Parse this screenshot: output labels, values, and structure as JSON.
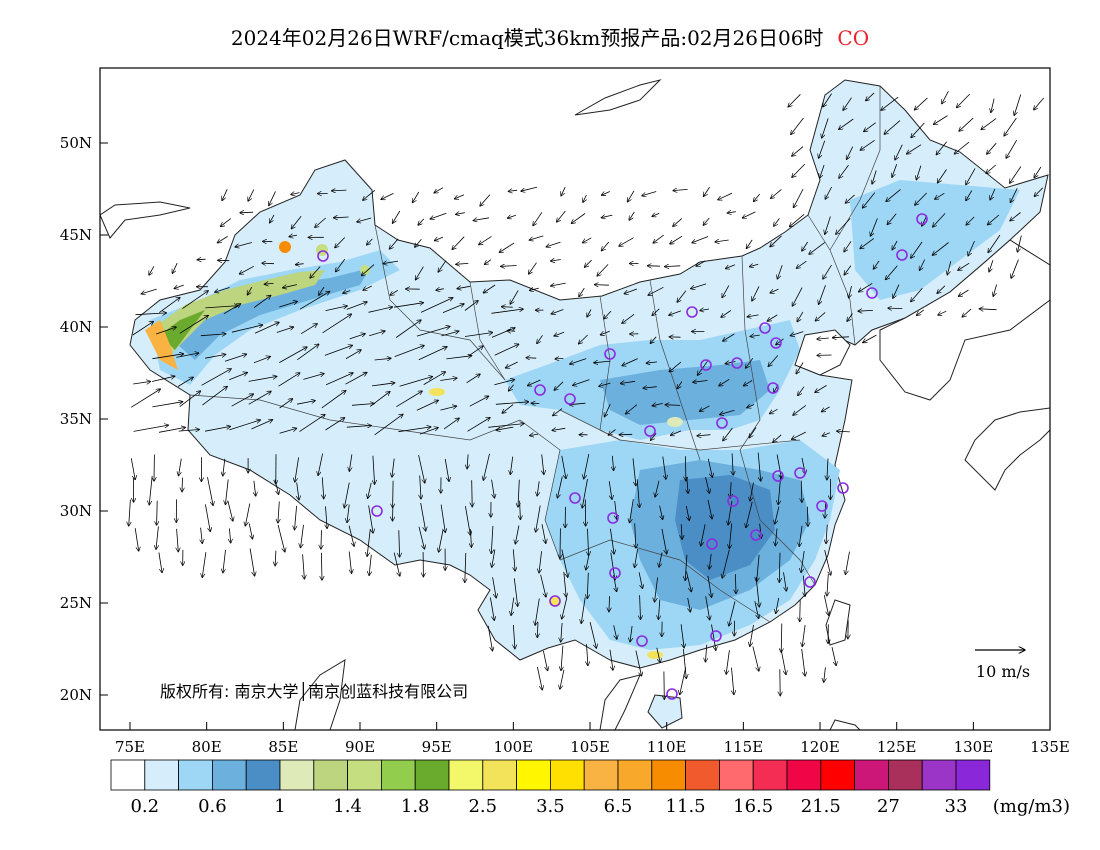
{
  "title": {
    "text": "2024年02月26日WRF/cmaq模式36km预报产品:02月26日06时",
    "pollutant": "CO",
    "pollutant_color": "#e8232d"
  },
  "axes": {
    "lat_labels": [
      "50N",
      "45N",
      "40N",
      "35N",
      "30N",
      "25N",
      "20N"
    ],
    "lon_labels": [
      "75E",
      "80E",
      "85E",
      "90E",
      "95E",
      "100E",
      "105E",
      "110E",
      "115E",
      "120E",
      "125E",
      "130E",
      "135E"
    ]
  },
  "wind_scale": {
    "label": "10 m/s"
  },
  "copyright": "版权所有: 南京大学│南京创蓝科技有限公司",
  "legend": {
    "colors": [
      "#ffffff",
      "#d6eefb",
      "#9dd7f5",
      "#6cb0de",
      "#4a8ec5",
      "#deeab8",
      "#bdd57e",
      "#c5df80",
      "#93cd4e",
      "#6aaa2d",
      "#f2f86a",
      "#f3e35a",
      "#fff600",
      "#ffe000",
      "#f8b343",
      "#f8a92c",
      "#f88c00",
      "#f05a2c",
      "#ff6a6f",
      "#f42d55",
      "#f00546",
      "#ff0000",
      "#cc1678",
      "#a8305a",
      "#9a35c8",
      "#8a27d8"
    ],
    "labels": [
      "0.2",
      "0.6",
      "1",
      "1.4",
      "1.8",
      "2.5",
      "3.5",
      "6.5",
      "11.5",
      "16.5",
      "21.5",
      "27",
      "33"
    ],
    "unit": "(mg/m3)"
  },
  "stations_color": "#8a2be2"
}
